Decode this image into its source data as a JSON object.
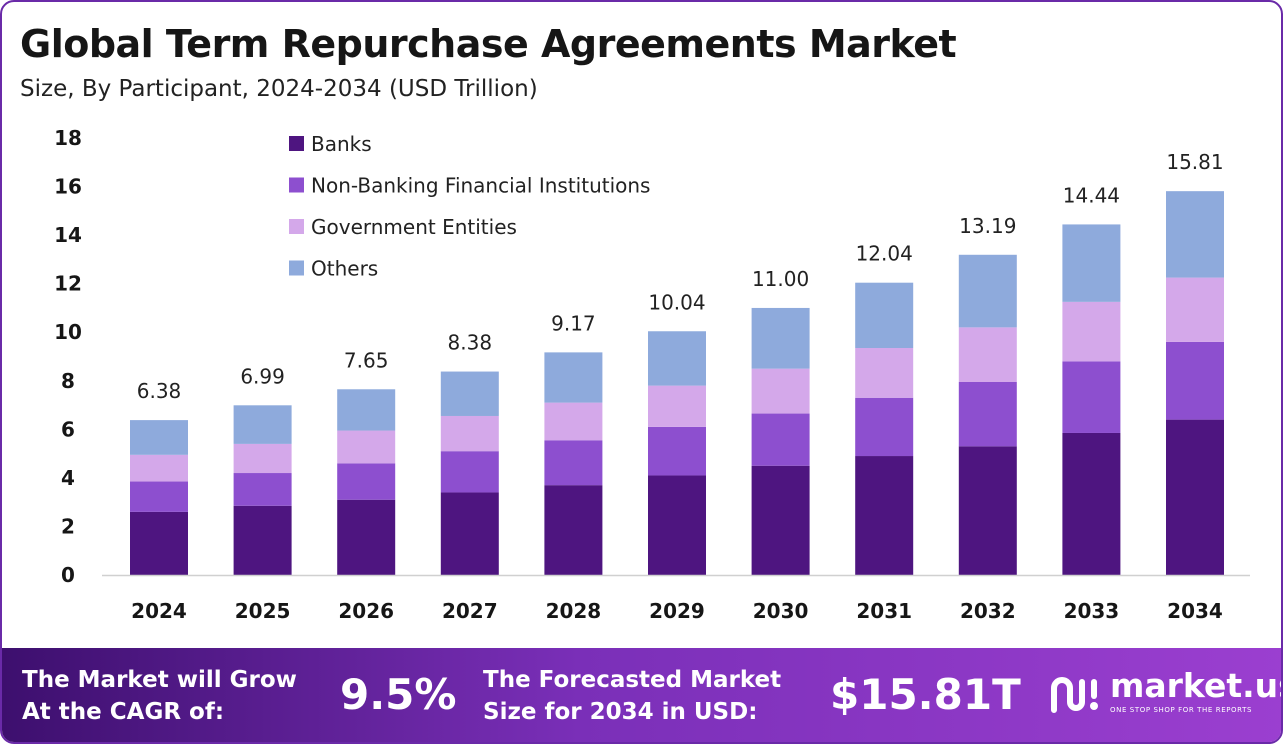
{
  "header": {
    "title": "Global Term Repurchase Agreements Market",
    "subtitle": "Size, By Participant, 2024-2034 (USD Trillion)"
  },
  "chart_data": {
    "type": "bar",
    "stacked": true,
    "categories": [
      "2024",
      "2025",
      "2026",
      "2027",
      "2028",
      "2029",
      "2030",
      "2031",
      "2032",
      "2033",
      "2034"
    ],
    "series": [
      {
        "name": "Banks",
        "color": "#4e1580",
        "values": [
          2.6,
          2.85,
          3.1,
          3.4,
          3.7,
          4.1,
          4.5,
          4.9,
          5.3,
          5.85,
          6.4
        ]
      },
      {
        "name": "Non-Banking Financial Institutions",
        "color": "#8d4fcf",
        "values": [
          1.25,
          1.35,
          1.5,
          1.7,
          1.85,
          2.0,
          2.15,
          2.4,
          2.65,
          2.95,
          3.2
        ]
      },
      {
        "name": "Government Entities",
        "color": "#d4a8ea",
        "values": [
          1.1,
          1.2,
          1.35,
          1.45,
          1.55,
          1.7,
          1.85,
          2.05,
          2.25,
          2.45,
          2.65
        ]
      },
      {
        "name": "Others",
        "color": "#8eaadc",
        "values": [
          1.43,
          1.59,
          1.7,
          1.83,
          2.07,
          2.24,
          2.5,
          2.69,
          2.99,
          3.19,
          3.56
        ]
      }
    ],
    "totals": [
      "6.38",
      "6.99",
      "7.65",
      "8.38",
      "9.17",
      "10.04",
      "11.00",
      "12.04",
      "13.19",
      "14.44",
      "15.81"
    ],
    "yticks": [
      "0",
      "2",
      "4",
      "6",
      "8",
      "10",
      "12",
      "14",
      "16",
      "18"
    ],
    "ylim": [
      0,
      18
    ],
    "grid": false,
    "legend_position": "top-left"
  },
  "footer": {
    "cagr_line1": "The Market will Grow",
    "cagr_line2": "At the CAGR of:",
    "cagr_value": "9.5%",
    "forecast_line1": "The Forecasted Market",
    "forecast_line2": "Size for 2034 in USD:",
    "forecast_value": "$15.81T",
    "brand_name": "market.us",
    "brand_tagline": "ONE STOP SHOP FOR THE REPORTS",
    "brand_icon": "market-us-logo-icon"
  }
}
